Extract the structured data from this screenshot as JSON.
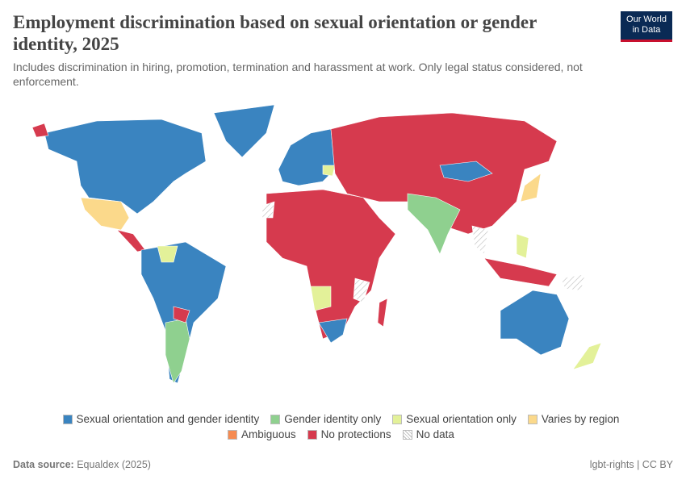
{
  "header": {
    "title": "Employment discrimination based on sexual orientation or gender identity, 2025",
    "subtitle": "Includes discrimination in hiring, promotion, termination and harassment at work. Only legal status considered, not enforcement.",
    "logo": [
      "Our World",
      "in Data"
    ]
  },
  "legend": [
    {
      "label": "Sexual orientation and gender identity",
      "color": "#3a84c0"
    },
    {
      "label": "Gender identity only",
      "color": "#8fd08f"
    },
    {
      "label": "Sexual orientation only",
      "color": "#e3f199"
    },
    {
      "label": "Varies by region",
      "color": "#fbd98b"
    },
    {
      "label": "Ambiguous",
      "color": "#f68b51"
    },
    {
      "label": "No protections",
      "color": "#d63a4e"
    },
    {
      "label": "No data",
      "color": "#ffffff",
      "pattern": "hatch"
    }
  ],
  "footer": {
    "source_label": "Data source:",
    "source": "Equaldex (2025)",
    "license": "lgbt-rights | CC BY"
  }
}
